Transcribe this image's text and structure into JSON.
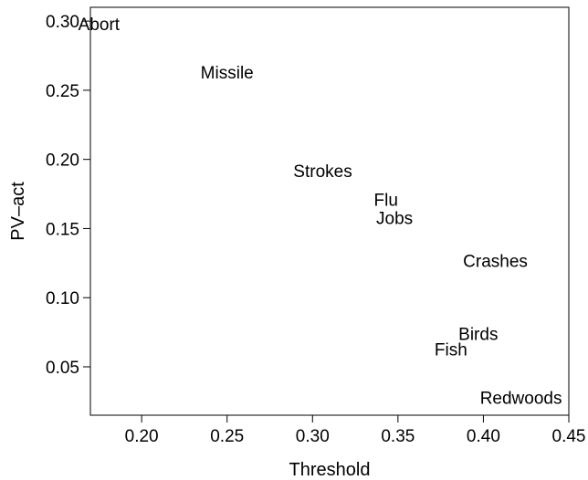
{
  "chart_data": {
    "type": "scatter",
    "xlabel": "Threshold",
    "ylabel": "PV–act",
    "xlim": [
      0.17,
      0.45
    ],
    "ylim": [
      0.015,
      0.31
    ],
    "x_ticks": [
      0.2,
      0.25,
      0.3,
      0.35,
      0.4,
      0.45
    ],
    "y_ticks": [
      0.05,
      0.1,
      0.15,
      0.2,
      0.25,
      0.3
    ],
    "x_tick_labels": [
      "0.20",
      "0.25",
      "0.30",
      "0.35",
      "0.40",
      "0.45"
    ],
    "y_tick_labels": [
      "0.05",
      "0.10",
      "0.15",
      "0.20",
      "0.25",
      "0.30"
    ],
    "grid": false,
    "points": [
      {
        "label": "Abort",
        "x": 0.175,
        "y": 0.298
      },
      {
        "label": "Missile",
        "x": 0.25,
        "y": 0.263
      },
      {
        "label": "Strokes",
        "x": 0.306,
        "y": 0.192
      },
      {
        "label": "Flu",
        "x": 0.343,
        "y": 0.171
      },
      {
        "label": "Jobs",
        "x": 0.348,
        "y": 0.158
      },
      {
        "label": "Crashes",
        "x": 0.407,
        "y": 0.127
      },
      {
        "label": "Birds",
        "x": 0.397,
        "y": 0.074
      },
      {
        "label": "Fish",
        "x": 0.381,
        "y": 0.063
      },
      {
        "label": "Redwoods",
        "x": 0.422,
        "y": 0.028
      }
    ]
  }
}
